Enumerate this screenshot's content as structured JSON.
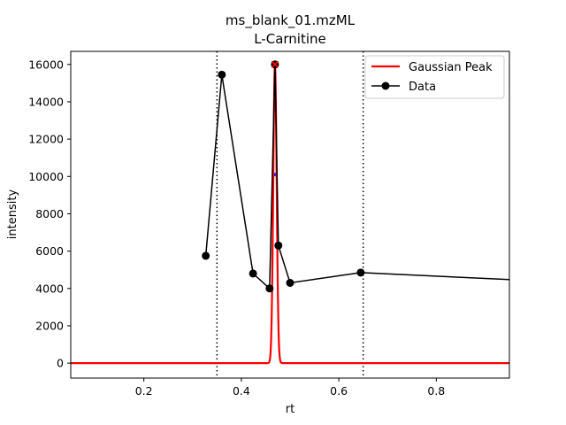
{
  "chart_data": {
    "type": "line",
    "title": "ms_blank_01.mzML",
    "subtitle": "L-Carnitine",
    "xlabel": "rt",
    "ylabel": "intensity",
    "xlim": [
      0.05,
      0.95
    ],
    "ylim": [
      -800,
      16700
    ],
    "xticks": [
      0.2,
      0.4,
      0.6,
      0.8
    ],
    "xtick_labels": [
      "0.2",
      "0.4",
      "0.6",
      "0.8"
    ],
    "yticks": [
      0,
      2000,
      4000,
      6000,
      8000,
      10000,
      12000,
      14000,
      16000
    ],
    "ytick_labels": [
      "0",
      "2000",
      "4000",
      "6000",
      "8000",
      "10000",
      "12000",
      "14000",
      "16000"
    ],
    "grid": false,
    "legend_position": "top-right",
    "series": [
      {
        "name": "Gaussian Peak",
        "kind": "gaussian",
        "color": "#ff0000",
        "amplitude": 16000,
        "mean": 0.469,
        "sigma": 0.0035
      },
      {
        "name": "Data",
        "kind": "line-marker",
        "color": "#000000",
        "x": [
          0.327,
          0.36,
          0.424,
          0.458,
          0.469,
          0.476,
          0.5,
          0.645,
          0.97
        ],
        "y": [
          5750,
          15450,
          4800,
          4000,
          16000,
          6300,
          4300,
          4850,
          4450
        ]
      }
    ],
    "vlines": [
      {
        "x": 0.35,
        "style": "dotted",
        "color": "#000000"
      },
      {
        "x": 0.65,
        "style": "dotted",
        "color": "#000000"
      }
    ],
    "peak_marker": {
      "x": 0.469,
      "y": 16000,
      "symbol": "x",
      "color": "#ff0000"
    },
    "mean_marker": {
      "x": 0.469,
      "y": 10100,
      "color": "#0000ff"
    }
  }
}
